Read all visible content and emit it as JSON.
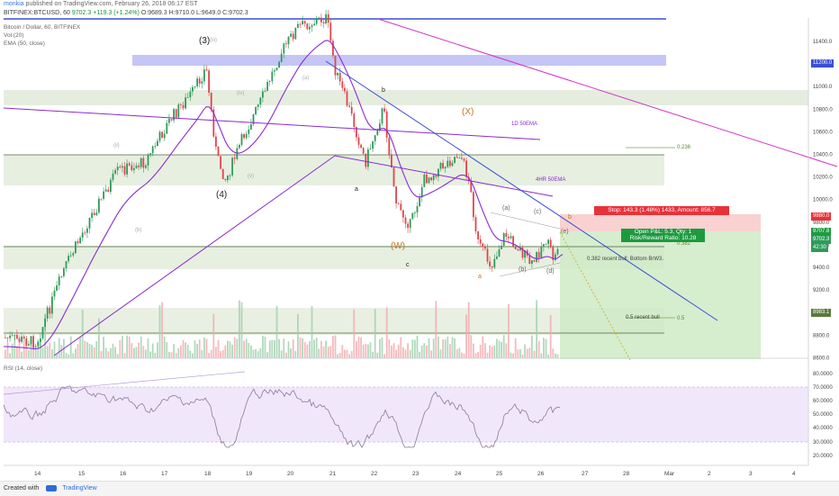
{
  "header": {
    "author": "monkia",
    "published_text": "published on TradingView.com, February 26, 2018 06:17 EST"
  },
  "symbol_bar": {
    "symbol": "BITFINEX:BTCUSD, 60",
    "price": "9702.3",
    "change": "+119.3 (+1.24%)",
    "open": "O:9689.3",
    "high": "H:9710.0",
    "low": "L:9649.0",
    "close": "C:9702.3"
  },
  "legend": {
    "title": "Bitcoin / Dollar, 60, BITFINEX",
    "vol": "Vol (20)",
    "ema": "EMA (50, close)",
    "rsi": "RSI (14, close)"
  },
  "price_axis": [
    "11400.0",
    "11200.0",
    "11000.0",
    "10800.0",
    "10600.0",
    "10400.0",
    "10200.0",
    "10000.0",
    "9800.0",
    "9600.0",
    "9400.0",
    "9200.0",
    "9000.0",
    "8800.0",
    "8600.0"
  ],
  "price_badges": {
    "level_11200": "11200.0",
    "stop": "9880.0",
    "target": "9707.8",
    "last": "9702.3",
    "countdown": "42:30",
    "level_8983": "8983.1"
  },
  "rsi_axis": [
    "80.0000",
    "70.0000",
    "60.0000",
    "50.0000",
    "40.0000",
    "30.0000",
    "20.0000"
  ],
  "x_axis": [
    "14",
    "15",
    "16",
    "17",
    "18",
    "19",
    "20",
    "21",
    "22",
    "23",
    "24",
    "25",
    "26",
    "27",
    "28",
    "Mar",
    "2",
    "3",
    "4"
  ],
  "annotations": {
    "stop_label": "Stop: 143.3 (1.48%) 1433, Amount: 856.7",
    "pnl_line1": "Open P&L: 5.3, Qty: 1",
    "pnl_line2": "Risk/Reward Ratio: 10.28",
    "fib_236": "0.236",
    "fib_382": "0.382",
    "fib_5": "0.5",
    "recent_bull_382": "0.382 recent bull: Bottom BrW3.",
    "recent_bull_5": "0.5 recent bull",
    "ema_1d": "1D 50EMA",
    "ema_4h": "4HR 50EMA",
    "wave_3": "(3)",
    "wave_4": "(4)",
    "wave_X": "(X)",
    "wave_W": "(W)",
    "wave_a1": "a",
    "wave_b": "b",
    "wave_c1": "c",
    "wave_a2": "a",
    "wave_a3": "(a)",
    "wave_b2": "(b)",
    "wave_c2": "(c)",
    "wave_d": "(d)",
    "wave_e": "(e)",
    "wave_b3": "b",
    "small_iv": "(iv)",
    "small_ii": "(ii)",
    "small_iii": "(iii)",
    "small_b4": "(b)",
    "small_v": "(v)",
    "small_a4": "(a)"
  },
  "footer": {
    "created_with": "Created with",
    "brand": "TradingView"
  },
  "colors": {
    "candle_up": "#2f9b5a",
    "candle_down": "#e0454c",
    "ema": "#8a2bd1",
    "trend_blue": "#3a4fd6",
    "magenta": "#d233c8",
    "zone_green": "#dfe9d7",
    "zone_blue": "#b7b8f2",
    "rsi_band": "#efe4fb",
    "rsi_line": "#8d7a97"
  }
}
